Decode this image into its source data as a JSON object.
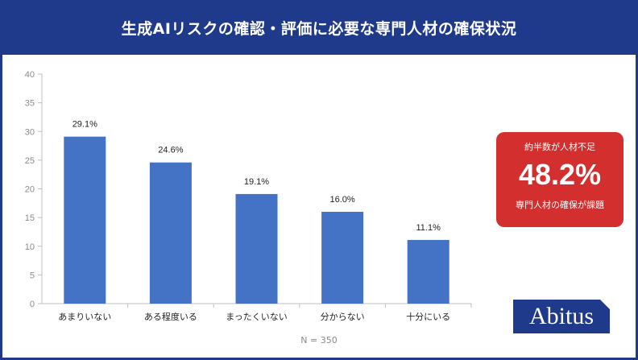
{
  "header": {
    "title": "生成AIリスクの確認・評価に必要な専門人材の確保状況"
  },
  "chart_data": {
    "type": "bar",
    "categories": [
      "あまりいない",
      "ある程度いる",
      "まったくいない",
      "分からない",
      "十分にいる"
    ],
    "values": [
      29.1,
      24.6,
      19.1,
      16.0,
      11.1
    ],
    "data_labels": [
      "29.1%",
      "24.6%",
      "19.1%",
      "16.0%",
      "11.1%"
    ],
    "yticks": [
      "0",
      "5",
      "10",
      "15",
      "20",
      "25",
      "30",
      "35",
      "40"
    ],
    "ylim": [
      0,
      40
    ],
    "bar_color": "#4472c4",
    "grid": false,
    "note": "N = 350"
  },
  "callout": {
    "top_text": "約半数が人材不足",
    "value": "48.2%",
    "bottom_text": "専門人材の確保が課題",
    "color": "#d32f2f"
  },
  "logo": {
    "text": "Abitus"
  },
  "colors": {
    "header": "#1f3a8a",
    "bars": "#4472c4",
    "callout": "#d32f2f"
  }
}
